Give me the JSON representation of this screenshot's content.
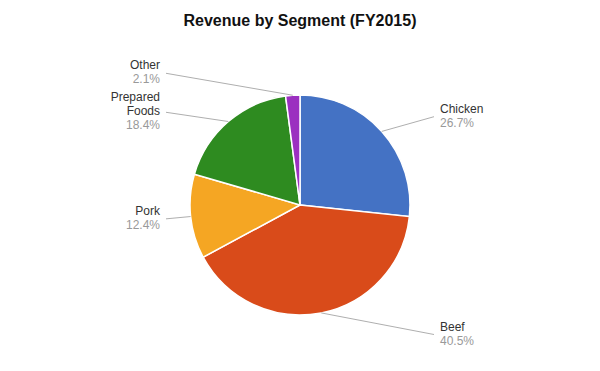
{
  "chart_data": {
    "type": "pie",
    "title": "Revenue by Segment (FY2015)",
    "categories": [
      "Chicken",
      "Beef",
      "Pork",
      "Prepared\nFoods",
      "Other"
    ],
    "values": [
      26.7,
      40.5,
      12.4,
      18.4,
      2.1
    ],
    "value_labels": [
      "26.7%",
      "40.5%",
      "12.4%",
      "18.4%",
      "2.1%"
    ],
    "colors": [
      "#4472C4",
      "#D94B1A",
      "#F5A623",
      "#2E8B20",
      "#9B30C0"
    ],
    "data_labels": true
  }
}
